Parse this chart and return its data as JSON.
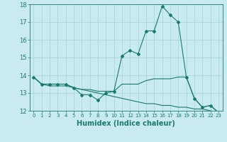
{
  "xlabel": "Humidex (Indice chaleur)",
  "background_color": "#c8eaf0",
  "line_color": "#1a7a6e",
  "grid_color": "#a8d8d8",
  "x_values": [
    0,
    1,
    2,
    3,
    4,
    5,
    6,
    7,
    8,
    9,
    10,
    11,
    12,
    13,
    14,
    15,
    16,
    17,
    18,
    19,
    20,
    21,
    22,
    23
  ],
  "series1": [
    13.9,
    13.5,
    13.5,
    13.5,
    13.5,
    13.3,
    12.9,
    12.9,
    12.6,
    13.0,
    13.1,
    15.1,
    15.4,
    15.2,
    16.5,
    16.5,
    17.9,
    17.4,
    17.0,
    13.9,
    12.7,
    12.2,
    12.3,
    11.9
  ],
  "series2": [
    13.9,
    13.5,
    13.5,
    13.5,
    13.5,
    13.3,
    13.2,
    13.2,
    13.1,
    13.1,
    13.1,
    13.5,
    13.5,
    13.5,
    13.7,
    13.8,
    13.8,
    13.8,
    13.9,
    13.9,
    12.7,
    12.2,
    12.3,
    11.9
  ],
  "series3": [
    13.9,
    13.5,
    13.4,
    13.4,
    13.4,
    13.3,
    13.2,
    13.1,
    13.0,
    12.9,
    12.8,
    12.7,
    12.6,
    12.5,
    12.4,
    12.4,
    12.3,
    12.3,
    12.2,
    12.2,
    12.1,
    12.1,
    12.0,
    11.9
  ],
  "ylim": [
    12,
    18
  ],
  "xlim": [
    -0.5,
    23.5
  ],
  "yticks": [
    12,
    13,
    14,
    15,
    16,
    17,
    18
  ],
  "xticks": [
    0,
    1,
    2,
    3,
    4,
    5,
    6,
    7,
    8,
    9,
    10,
    11,
    12,
    13,
    14,
    15,
    16,
    17,
    18,
    19,
    20,
    21,
    22,
    23
  ],
  "xlabel_fontsize": 7,
  "ytick_fontsize": 6,
  "xtick_fontsize": 5
}
